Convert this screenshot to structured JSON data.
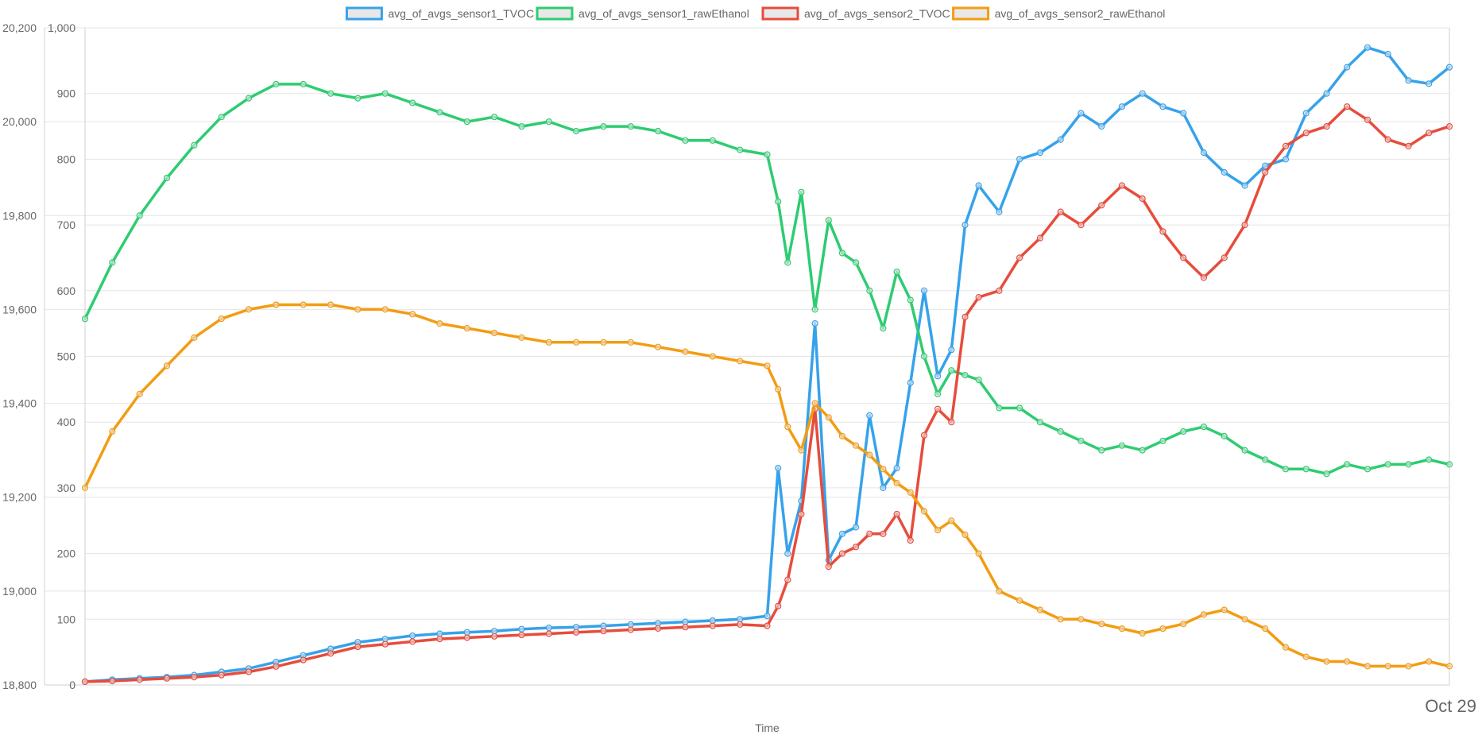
{
  "chart_data": {
    "type": "line",
    "legend_position": "top",
    "grid": true,
    "xlabel": "Time",
    "x_ticks": [
      "Oct 29"
    ],
    "y_axes": [
      {
        "id": "left-outer",
        "range": [
          18800,
          20200
        ],
        "ticks": [
          "18,800",
          "19,000",
          "19,200",
          "19,400",
          "19,600",
          "19,800",
          "20,000",
          "20,200"
        ]
      },
      {
        "id": "left-inner",
        "range": [
          0,
          1000
        ],
        "ticks": [
          "0",
          "100",
          "200",
          "300",
          "400",
          "500",
          "600",
          "700",
          "800",
          "900",
          "1,000"
        ]
      }
    ],
    "x_range": [
      0,
      100
    ],
    "series": [
      {
        "name": "avg_of_avgs_sensor1_TVOC",
        "color": "#36a2eb",
        "axis": "left-inner",
        "x": [
          0,
          2,
          4,
          6,
          8,
          10,
          12,
          14,
          16,
          18,
          20,
          22,
          24,
          26,
          28,
          30,
          32,
          34,
          36,
          38,
          40,
          42,
          44,
          46,
          48,
          50,
          50.8,
          51.5,
          52.5,
          53.5,
          54.5,
          55.5,
          56.5,
          57.5,
          58.5,
          59.5,
          60.5,
          61.5,
          62.5,
          63.5,
          64.5,
          65.5,
          67,
          68.5,
          70,
          71.5,
          73,
          74.5,
          76,
          77.5,
          79,
          80.5,
          82,
          83.5,
          85,
          86.5,
          88,
          89.5,
          91,
          92.5,
          94,
          95.5,
          97,
          98.5,
          100
        ],
        "values": [
          5,
          8,
          10,
          12,
          15,
          20,
          25,
          35,
          45,
          55,
          65,
          70,
          75,
          78,
          80,
          82,
          85,
          87,
          88,
          90,
          92,
          94,
          96,
          98,
          100,
          105,
          330,
          200,
          280,
          550,
          190,
          230,
          240,
          410,
          300,
          330,
          460,
          600,
          470,
          510,
          700,
          760,
          720,
          800,
          810,
          830,
          870,
          850,
          880,
          900,
          880,
          870,
          810,
          780,
          760,
          790,
          800,
          870,
          900,
          940,
          970,
          960,
          920,
          915,
          940
        ]
      },
      {
        "name": "avg_of_avgs_sensor1_rawEthanol",
        "color": "#2ecc71",
        "axis": "left-outer",
        "x": [
          0,
          2,
          4,
          6,
          8,
          10,
          12,
          14,
          16,
          18,
          20,
          22,
          24,
          26,
          28,
          30,
          32,
          34,
          36,
          38,
          40,
          42,
          44,
          46,
          48,
          50,
          50.8,
          51.5,
          52.5,
          53.5,
          54.5,
          55.5,
          56.5,
          57.5,
          58.5,
          59.5,
          60.5,
          61.5,
          62.5,
          63.5,
          64.5,
          65.5,
          67,
          68.5,
          70,
          71.5,
          73,
          74.5,
          76,
          77.5,
          79,
          80.5,
          82,
          83.5,
          85,
          86.5,
          88,
          89.5,
          91,
          92.5,
          94,
          95.5,
          97,
          98.5,
          100
        ],
        "values": [
          19580,
          19700,
          19800,
          19880,
          19950,
          20010,
          20050,
          20080,
          20080,
          20060,
          20050,
          20060,
          20040,
          20020,
          20000,
          20010,
          19990,
          20000,
          19980,
          19990,
          19990,
          19980,
          19960,
          19960,
          19940,
          19930,
          19830,
          19700,
          19850,
          19600,
          19790,
          19720,
          19700,
          19640,
          19560,
          19680,
          19620,
          19500,
          19420,
          19470,
          19460,
          19450,
          19390,
          19390,
          19360,
          19340,
          19320,
          19300,
          19310,
          19300,
          19320,
          19340,
          19350,
          19330,
          19300,
          19280,
          19260,
          19260,
          19250,
          19270,
          19260,
          19270,
          19270,
          19280,
          19270
        ]
      },
      {
        "name": "avg_of_avgs_sensor2_TVOC",
        "color": "#e74c3c",
        "axis": "left-inner",
        "x": [
          0,
          2,
          4,
          6,
          8,
          10,
          12,
          14,
          16,
          18,
          20,
          22,
          24,
          26,
          28,
          30,
          32,
          34,
          36,
          38,
          40,
          42,
          44,
          46,
          48,
          50,
          50.8,
          51.5,
          52.5,
          53.5,
          54.5,
          55.5,
          56.5,
          57.5,
          58.5,
          59.5,
          60.5,
          61.5,
          62.5,
          63.5,
          64.5,
          65.5,
          67,
          68.5,
          70,
          71.5,
          73,
          74.5,
          76,
          77.5,
          79,
          80.5,
          82,
          83.5,
          85,
          86.5,
          88,
          89.5,
          91,
          92.5,
          94,
          95.5,
          97,
          98.5,
          100
        ],
        "values": [
          5,
          6,
          8,
          10,
          12,
          15,
          20,
          28,
          38,
          48,
          58,
          62,
          66,
          70,
          72,
          74,
          76,
          78,
          80,
          82,
          84,
          86,
          88,
          90,
          92,
          90,
          120,
          160,
          260,
          420,
          180,
          200,
          210,
          230,
          230,
          260,
          220,
          380,
          420,
          400,
          560,
          590,
          600,
          650,
          680,
          720,
          700,
          730,
          760,
          740,
          690,
          650,
          620,
          650,
          700,
          780,
          820,
          840,
          850,
          880,
          860,
          830,
          820,
          840,
          850
        ]
      },
      {
        "name": "avg_of_avgs_sensor2_rawEthanol",
        "color": "#f39c12",
        "axis": "left-outer",
        "x": [
          0,
          2,
          4,
          6,
          8,
          10,
          12,
          14,
          16,
          18,
          20,
          22,
          24,
          26,
          28,
          30,
          32,
          34,
          36,
          38,
          40,
          42,
          44,
          46,
          48,
          50,
          50.8,
          51.5,
          52.5,
          53.5,
          54.5,
          55.5,
          56.5,
          57.5,
          58.5,
          59.5,
          60.5,
          61.5,
          62.5,
          63.5,
          64.5,
          65.5,
          67,
          68.5,
          70,
          71.5,
          73,
          74.5,
          76,
          77.5,
          79,
          80.5,
          82,
          83.5,
          85,
          86.5,
          88,
          89.5,
          91,
          92.5,
          94,
          95.5,
          97,
          98.5,
          100
        ],
        "values": [
          19220,
          19340,
          19420,
          19480,
          19540,
          19580,
          19600,
          19610,
          19610,
          19610,
          19600,
          19600,
          19590,
          19570,
          19560,
          19550,
          19540,
          19530,
          19530,
          19530,
          19530,
          19520,
          19510,
          19500,
          19490,
          19480,
          19430,
          19350,
          19300,
          19400,
          19370,
          19330,
          19310,
          19290,
          19260,
          19230,
          19210,
          19170,
          19130,
          19150,
          19120,
          19080,
          19000,
          18980,
          18960,
          18940,
          18940,
          18930,
          18920,
          18910,
          18920,
          18930,
          18950,
          18960,
          18940,
          18920,
          18880,
          18860,
          18850,
          18850,
          18840,
          18840,
          18840,
          18850,
          18840
        ]
      }
    ]
  }
}
